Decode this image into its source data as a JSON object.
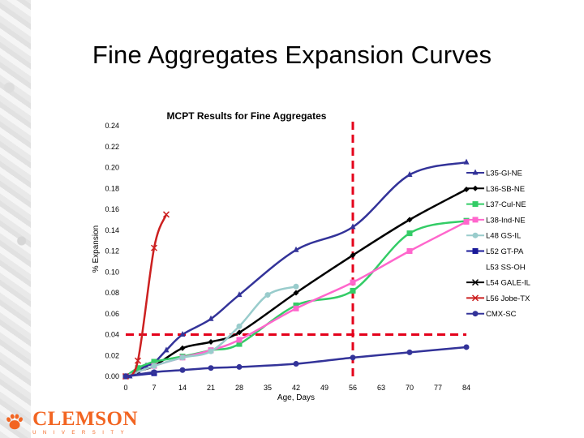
{
  "slide": {
    "title": "Fine Aggregates Expansion Curves"
  },
  "logo": {
    "main": "CLEMSON",
    "sub": "UNIVERSITY",
    "color": "#f26522"
  },
  "chart_data": {
    "type": "line",
    "title": "MCPT Results for Fine Aggregates",
    "xlabel": "Age, Days",
    "ylabel": "% Expansion",
    "xticks": [
      0,
      7,
      14,
      21,
      28,
      35,
      42,
      49,
      56,
      63,
      70,
      77,
      84
    ],
    "yticks": [
      0.0,
      0.02,
      0.04,
      0.06,
      0.08,
      0.1,
      0.12,
      0.14,
      0.16,
      0.18,
      0.2,
      0.22,
      0.24
    ],
    "xlim": [
      0,
      84
    ],
    "ylim": [
      0,
      0.24
    ],
    "grid": false,
    "legend_position": "right",
    "reference_lines": [
      {
        "type": "vertical",
        "x": 56,
        "color": "#e4001b"
      },
      {
        "type": "horizontal",
        "y": 0.04,
        "color": "#e4001b"
      }
    ],
    "series": [
      {
        "name": "L35-Gl-NE",
        "color": "#333399",
        "marker": "triangle",
        "x": [
          0,
          1,
          3,
          5,
          7,
          10,
          14,
          21,
          28,
          42,
          56,
          70,
          84
        ],
        "y": [
          0.0,
          0.0,
          0.005,
          0.01,
          0.013,
          0.025,
          0.04,
          0.055,
          0.078,
          0.121,
          0.143,
          0.193,
          0.205
        ]
      },
      {
        "name": "L36-SB-NE",
        "color": "#000000",
        "marker": "diamond",
        "x": [
          0,
          3,
          7,
          14,
          21,
          28,
          42,
          56,
          70,
          84
        ],
        "y": [
          0.0,
          0.005,
          0.01,
          0.027,
          0.033,
          0.042,
          0.08,
          0.116,
          0.15,
          0.179
        ]
      },
      {
        "name": "L37-Cul-NE",
        "color": "#33cc66",
        "marker": "square",
        "x": [
          0,
          3,
          7,
          14,
          21,
          28,
          42,
          56,
          70,
          84
        ],
        "y": [
          0.0,
          0.008,
          0.014,
          0.019,
          0.025,
          0.031,
          0.068,
          0.082,
          0.137,
          0.149
        ]
      },
      {
        "name": "L38-Ind-NE",
        "color": "#ff66cc",
        "marker": "square",
        "x": [
          0,
          7,
          14,
          21,
          28,
          42,
          56,
          70,
          84
        ],
        "y": [
          0.0,
          0.01,
          0.018,
          0.025,
          0.035,
          0.065,
          0.09,
          0.12,
          0.148
        ]
      },
      {
        "name": "L48 GS-IL",
        "color": "#99cccc",
        "marker": "circle",
        "x": [
          0,
          7,
          14,
          21,
          28,
          35,
          42
        ],
        "y": [
          0.0,
          0.01,
          0.018,
          0.024,
          0.048,
          0.078,
          0.086
        ]
      },
      {
        "name": "L52 GT-PA",
        "color": "#1a1a99",
        "marker": "square",
        "x": [
          0,
          7
        ],
        "y": [
          0.0,
          0.003
        ]
      },
      {
        "name": "L53 SS-OH",
        "color": "#ffffff",
        "marker": "none",
        "x": [],
        "y": []
      },
      {
        "name": "L54 GALE-IL",
        "color": "#000000",
        "marker": "x",
        "x": [],
        "y": []
      },
      {
        "name": "L56 Jobe-TX",
        "color": "#cc2020",
        "marker": "x",
        "x": [
          0,
          3,
          7,
          10
        ],
        "y": [
          0.0,
          0.015,
          0.123,
          0.155
        ]
      },
      {
        "name": "CMX-SC",
        "color": "#333399",
        "marker": "circle",
        "x": [
          0,
          7,
          14,
          21,
          28,
          42,
          56,
          70,
          84
        ],
        "y": [
          0.0,
          0.004,
          0.006,
          0.008,
          0.009,
          0.012,
          0.018,
          0.023,
          0.028
        ]
      }
    ]
  }
}
